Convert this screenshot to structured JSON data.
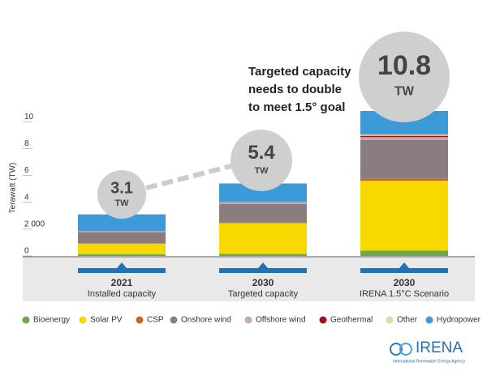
{
  "chart_data": {
    "type": "stacked_bar",
    "annotation": [
      "Targeted capacity",
      "needs to double",
      "to meet 1.5° goal"
    ],
    "ylabel": "Terawatt (TW)",
    "categories": [
      "2021",
      "2030",
      "2030"
    ],
    "category_labels": [
      "Installed capacity",
      "Targeted capacity",
      "IRENA 1.5°C Scenario"
    ],
    "totals": [
      3.1,
      5.4,
      10.8
    ],
    "total_unit": "TW",
    "ylim": [
      0,
      10.8
    ],
    "yticks": [
      0,
      {
        "value": 2,
        "label": "2 000"
      },
      4,
      6,
      8,
      10
    ],
    "series": [
      {
        "name": "Bioenergy",
        "color": "#6fa84a",
        "values": [
          0.12,
          0.15,
          0.4
        ]
      },
      {
        "name": "Solar PV",
        "color": "#f7d900",
        "values": [
          0.8,
          2.3,
          5.2
        ]
      },
      {
        "name": "CSP",
        "color": "#d2651c",
        "values": [
          0.01,
          0.03,
          0.15
        ]
      },
      {
        "name": "Onshore wind",
        "color": "#8a7c7f",
        "values": [
          0.82,
          1.4,
          2.9
        ]
      },
      {
        "name": "Offshore wind",
        "color": "#c7abb5",
        "values": [
          0.05,
          0.1,
          0.2
        ]
      },
      {
        "name": "Geothermal",
        "color": "#a3101c",
        "values": [
          0.02,
          0.03,
          0.1
        ]
      },
      {
        "name": "Other",
        "color": "#d9dca2",
        "values": [
          0.02,
          0.04,
          0.1
        ]
      },
      {
        "name": "Hydropower",
        "color": "#3d9ad8",
        "values": [
          1.26,
          1.35,
          1.75
        ]
      }
    ]
  },
  "logo": {
    "name": "IRENA",
    "tagline": "International Renewable Energy Agency"
  }
}
